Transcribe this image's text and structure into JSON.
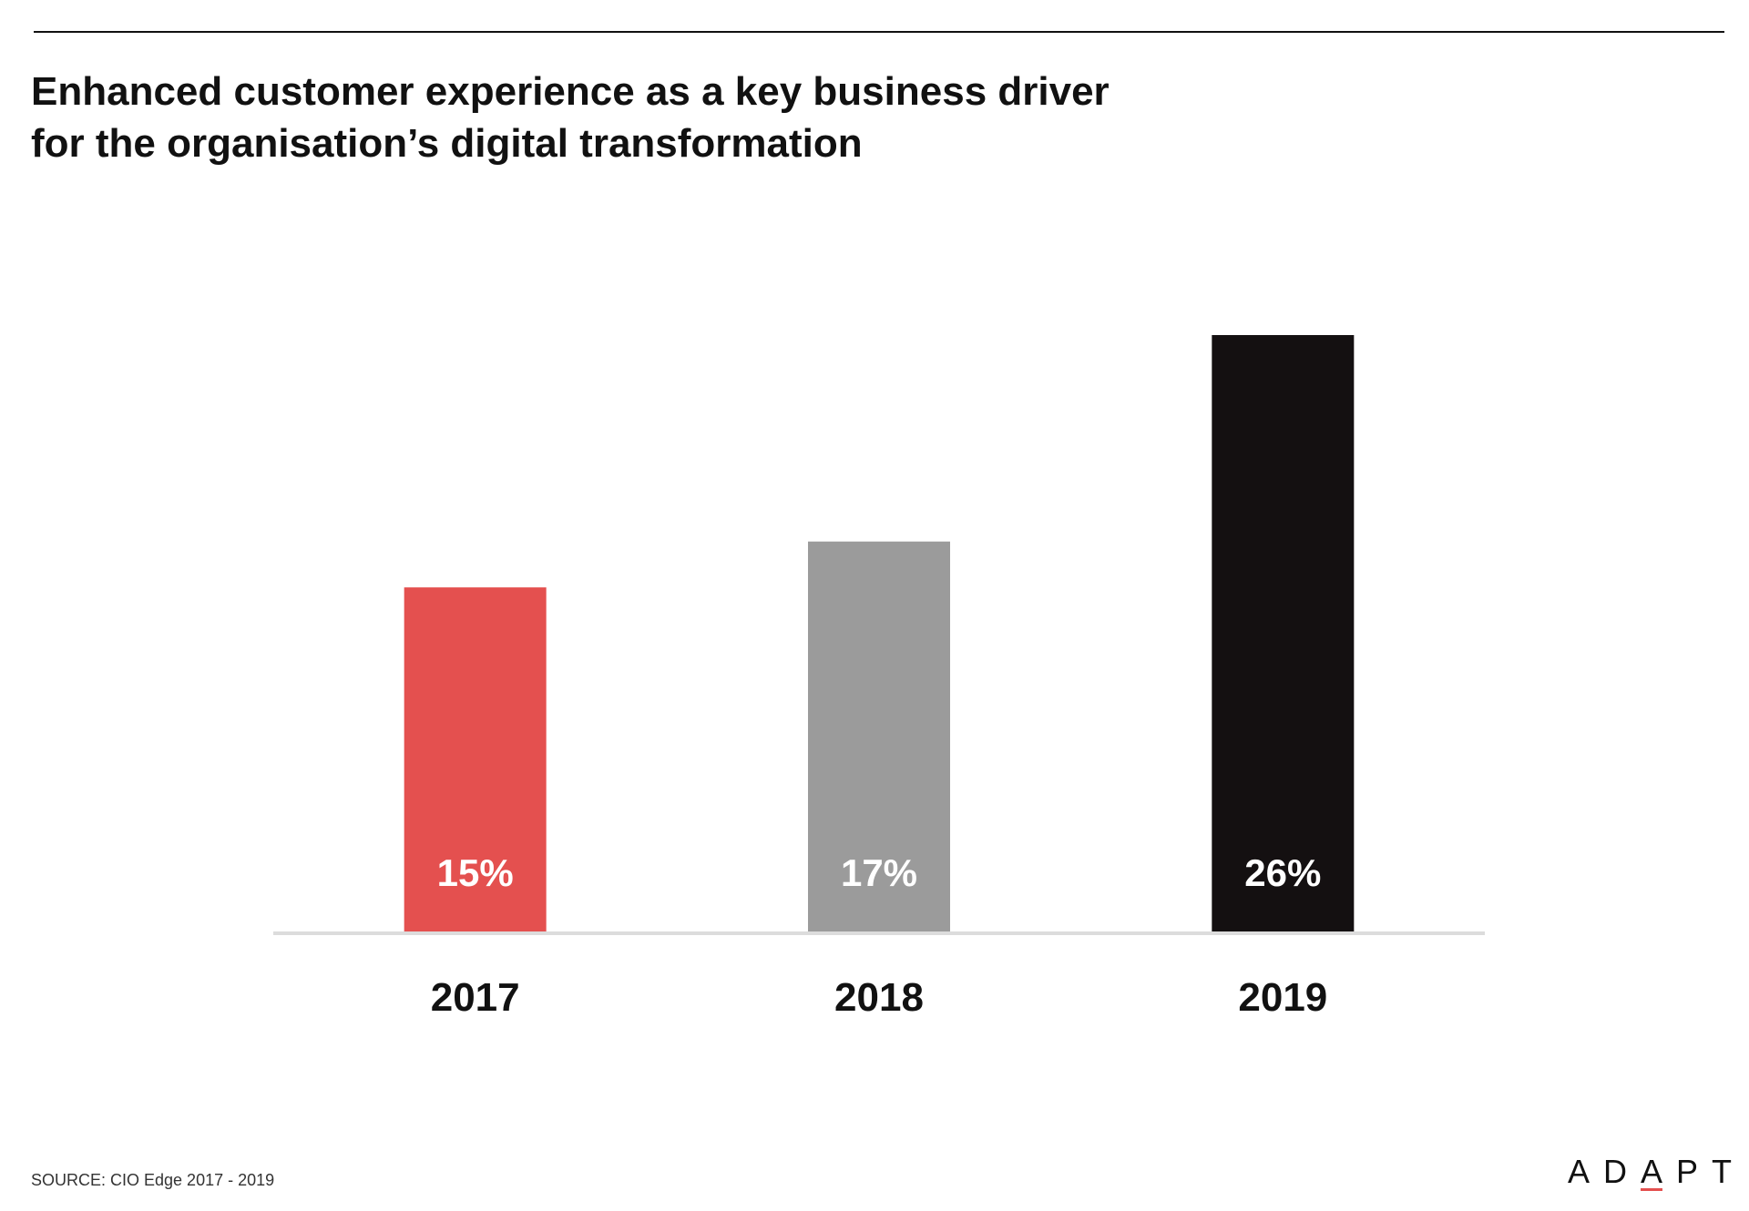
{
  "header": {
    "title_line1": "Enhanced customer experience as a key business driver",
    "title_line2": "for the organisation’s digital transformation"
  },
  "footer": {
    "source": "SOURCE: CIO Edge 2017 - 2019",
    "logo_text_a": "AD",
    "logo_text_b": "A",
    "logo_text_c": "PT"
  },
  "colors": {
    "bar_2017": "#e4504f",
    "bar_2018": "#9b9b9b",
    "bar_2019": "#141011",
    "axis_line": "#dcdcdc",
    "logo_accent": "#e4504f"
  },
  "chart_data": {
    "type": "bar",
    "title": "Enhanced customer experience as a key business driver for the organisation’s digital transformation",
    "categories": [
      "2017",
      "2018",
      "2019"
    ],
    "values": [
      15,
      17,
      26
    ],
    "value_labels": [
      "15%",
      "17%",
      "26%"
    ],
    "unit": "%",
    "xlabel": "",
    "ylabel": "",
    "ylim": [
      0,
      26
    ],
    "grid": false,
    "legend": "none",
    "bar_colors": [
      "#e4504f",
      "#9b9b9b",
      "#141011"
    ]
  }
}
